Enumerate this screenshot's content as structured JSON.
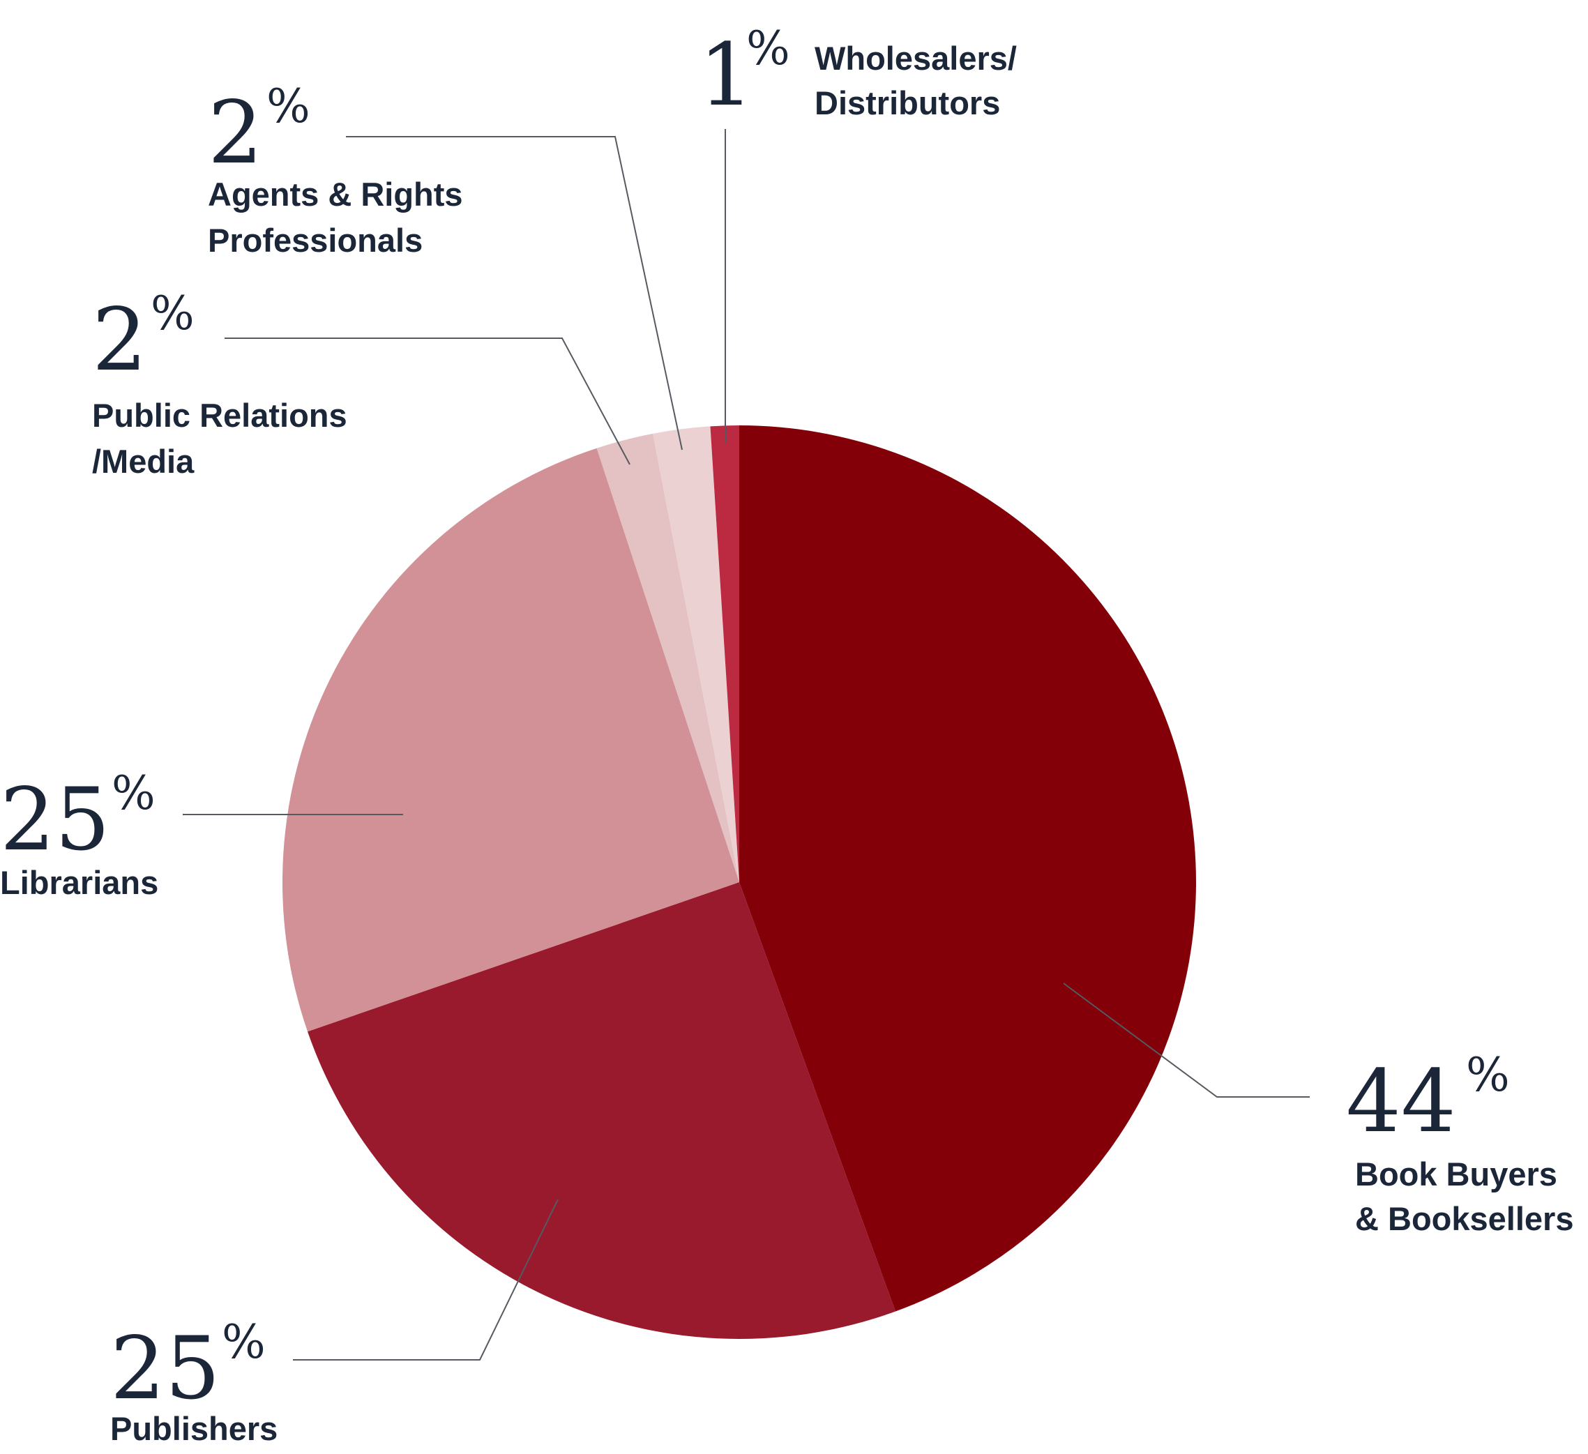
{
  "chart_data": {
    "type": "pie",
    "title": "",
    "start_angle_deg": 0,
    "direction": "clockwise",
    "slices": [
      {
        "label_lines": [
          "Book Buyers",
          "& Booksellers"
        ],
        "value": 44,
        "value_label": "44",
        "percent_sign": "%",
        "color": "#830009"
      },
      {
        "label_lines": [
          "Publishers"
        ],
        "value": 25,
        "value_label": "25",
        "percent_sign": "%",
        "color": "#991a2d"
      },
      {
        "label_lines": [
          "Librarians"
        ],
        "value": 25,
        "value_label": "25",
        "percent_sign": "%",
        "color": "#d29196"
      },
      {
        "label_lines": [
          "Public Relations",
          "/Media"
        ],
        "value": 2,
        "value_label": "2",
        "percent_sign": "%",
        "color": "#e4c1c3"
      },
      {
        "label_lines": [
          "Agents & Rights",
          "Professionals"
        ],
        "value": 2,
        "value_label": "2",
        "percent_sign": "%",
        "color": "#ebd1d2"
      },
      {
        "label_lines": [
          "Wholesalers/",
          "Distributors"
        ],
        "value": 1,
        "value_label": "1",
        "percent_sign": "%",
        "color": "#bb2a40"
      }
    ]
  }
}
